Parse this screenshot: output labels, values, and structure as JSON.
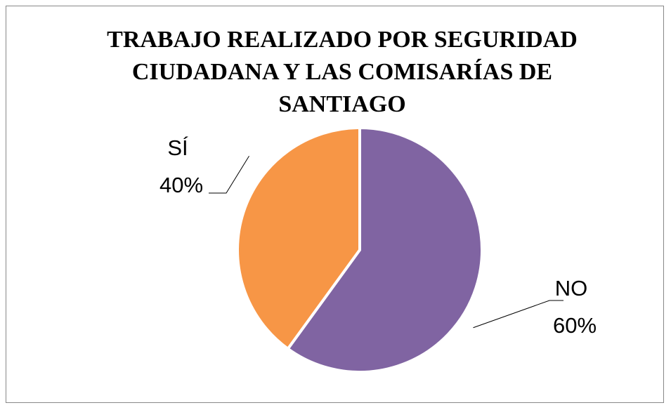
{
  "chart_data": {
    "type": "pie",
    "title": "TRABAJO REALIZADO POR SEGURIDAD CIUDADANA Y LAS COMISARÍAS DE SANTIAGO",
    "categories": [
      "NO",
      "SÍ"
    ],
    "values": [
      60,
      40
    ],
    "value_labels": [
      "60%",
      "40%"
    ],
    "colors": [
      "#8064a2",
      "#f79646"
    ]
  }
}
